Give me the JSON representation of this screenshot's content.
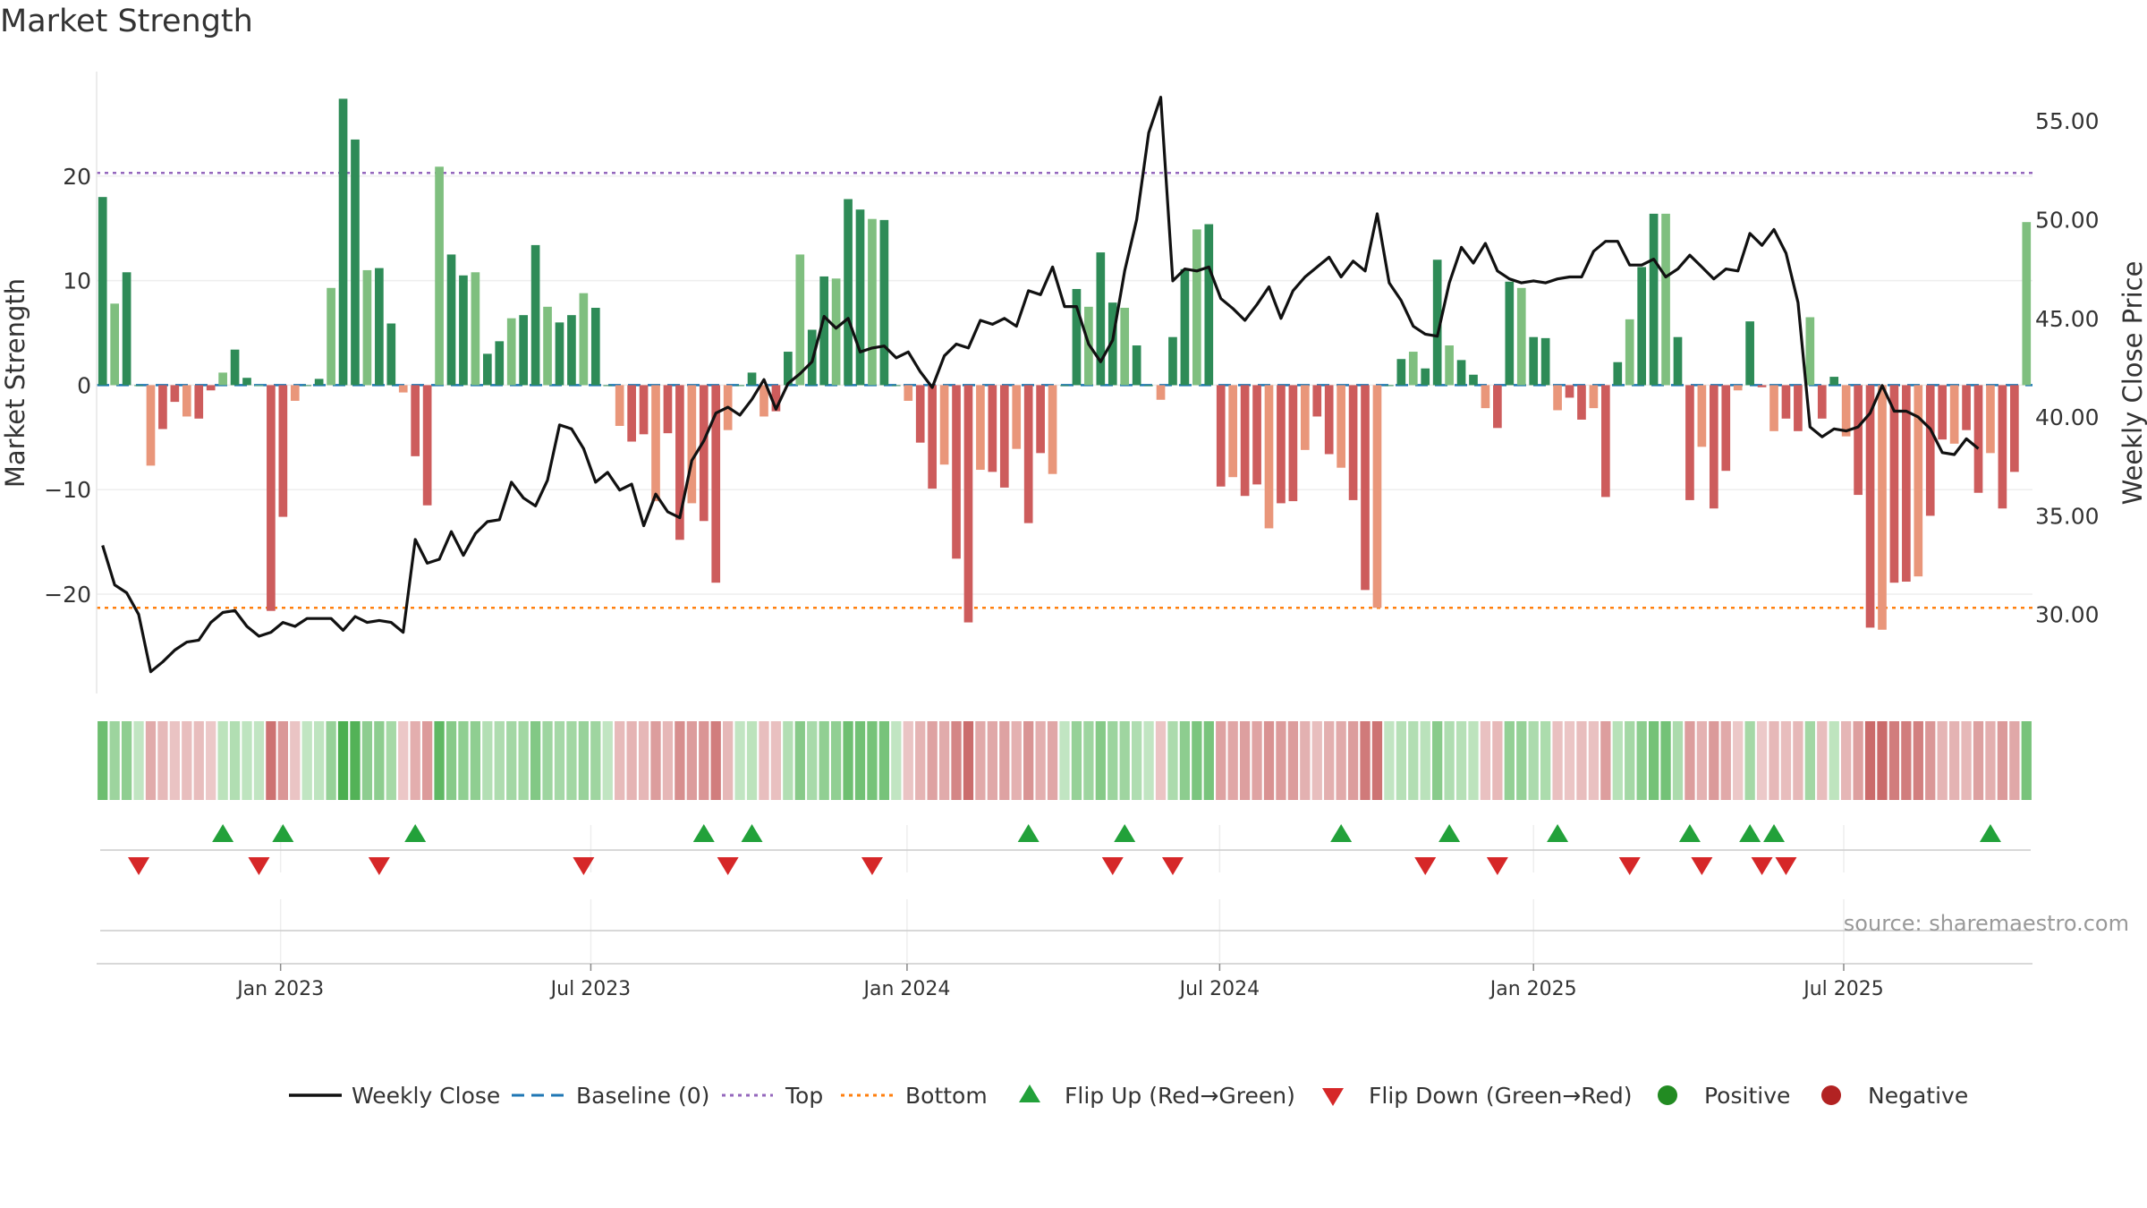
{
  "chart_data": {
    "type": "bar",
    "title": "Market Strength",
    "ylabel_left": "Market Strength",
    "ylabel_right": "Weekly Close Price",
    "source": "source: sharemaestro.com",
    "left_axis": {
      "ylim": [
        -29.5,
        30
      ],
      "ticks": [
        -20,
        -10,
        0,
        10,
        20
      ],
      "tick_labels": [
        "−20",
        "−10",
        "0",
        "10",
        "20"
      ]
    },
    "right_axis": {
      "ylim": [
        26,
        57.5
      ],
      "ticks": [
        30,
        35,
        40,
        45,
        50,
        55
      ],
      "tick_labels": [
        "30.00",
        "35.00",
        "40.00",
        "45.00",
        "50.00",
        "55.00"
      ]
    },
    "x_ticks": [
      "Jan 2023",
      "Jul 2023",
      "Jan 2024",
      "Jul 2024",
      "Jan 2025",
      "Jul 2025"
    ],
    "x_tick_weeks": [
      14.8,
      40.6,
      66.9,
      92.9,
      119.0,
      144.8
    ],
    "top_level": 20.3,
    "bottom_level": -21.3,
    "strength": [
      18,
      7.8,
      10.8,
      0,
      -7.7,
      -4.2,
      -1.6,
      -3,
      -3.2,
      -0.5,
      1.2,
      3.4,
      0.7,
      0,
      -21.6,
      -12.6,
      -1.5,
      0,
      0.6,
      9.3,
      27.4,
      23.5,
      11,
      11.2,
      5.9,
      -0.7,
      -6.8,
      -11.5,
      20.9,
      12.5,
      10.5,
      10.8,
      3,
      4.2,
      6.4,
      6.7,
      13.4,
      7.5,
      6,
      6.7,
      8.8,
      7.4,
      0,
      -3.9,
      -5.4,
      -4.7,
      -11.1,
      -4.6,
      -14.8,
      -11.3,
      -13,
      -18.9,
      -4.3,
      0,
      1.2,
      -3,
      -2.5,
      3.2,
      12.5,
      5.3,
      10.4,
      10.2,
      17.8,
      16.8,
      15.9,
      15.8,
      0,
      -1.5,
      -5.5,
      -9.9,
      -7.6,
      -16.6,
      -22.7,
      -8.1,
      -8.3,
      -9.8,
      -6.1,
      -13.2,
      -6.5,
      -8.5,
      0,
      9.2,
      7.5,
      12.7,
      7.9,
      7.4,
      3.8,
      0,
      -1.4,
      4.6,
      11.1,
      14.9,
      15.4,
      -9.7,
      -8.8,
      -10.6,
      -9.5,
      -13.7,
      -11.3,
      -11.1,
      -6.2,
      -3,
      -6.6,
      -7.9,
      -11,
      -19.6,
      -21.3,
      0,
      2.5,
      3.2,
      1.6,
      12,
      3.8,
      2.4,
      1,
      -2.2,
      -4.1,
      9.9,
      9.3,
      4.6,
      4.5,
      -2.4,
      -1.2,
      -3.3,
      -2.2,
      -10.7,
      2.2,
      6.3,
      11.3,
      16.4,
      16.4,
      4.6,
      -11,
      -5.9,
      -11.8,
      -8.2,
      -0.5,
      6.1,
      -0.2,
      -4.4,
      -3.2,
      -4.4,
      6.5,
      -3.2,
      0.8,
      -4.9,
      -10.5,
      -23.2,
      -23.4,
      -18.9,
      -18.8,
      -18.3,
      -12.5,
      -5.2,
      -5.6,
      -4.3,
      -10.3,
      -6.5,
      -11.8,
      -8.3,
      15.6
    ],
    "weekly_close": [
      33.5,
      31.5,
      31.1,
      30,
      27.1,
      27.6,
      28.2,
      28.6,
      28.7,
      29.6,
      30.1,
      30.2,
      29.4,
      28.9,
      29.1,
      29.6,
      29.4,
      29.8,
      29.8,
      29.8,
      29.2,
      29.9,
      29.6,
      29.7,
      29.6,
      29.1,
      33.8,
      32.6,
      32.8,
      34.2,
      33,
      34.1,
      34.7,
      34.8,
      36.7,
      35.9,
      35.5,
      36.8,
      39.6,
      39.4,
      38.4,
      36.7,
      37.2,
      36.3,
      36.6,
      34.5,
      36.1,
      35.2,
      34.9,
      37.8,
      38.8,
      40.2,
      40.5,
      40.1,
      40.9,
      41.9,
      40.4,
      41.7,
      42.2,
      42.8,
      45.1,
      44.5,
      45,
      43.3,
      43.5,
      43.6,
      43,
      43.3,
      42.3,
      41.5,
      43.1,
      43.7,
      43.5,
      44.9,
      44.7,
      45,
      44.6,
      46.4,
      46.2,
      47.6,
      45.6,
      45.6,
      43.7,
      42.8,
      43.9,
      47.4,
      50,
      54.4,
      56.2,
      46.9,
      47.5,
      47.4,
      47.6,
      46,
      45.5,
      44.9,
      45.7,
      46.6,
      45,
      46.4,
      47.1,
      47.6,
      48.1,
      47.1,
      47.9,
      47.4,
      50.3,
      46.8,
      45.9,
      44.6,
      44.2,
      44.1,
      46.8,
      48.6,
      47.8,
      48.8,
      47.4,
      47,
      46.8,
      46.9,
      46.8,
      47,
      47.1,
      47.1,
      48.4,
      48.9,
      48.9,
      47.7,
      47.7,
      48,
      47.1,
      47.5,
      48.2,
      47.6,
      47,
      47.5,
      47.4,
      49.3,
      48.7,
      49.5,
      48.3,
      45.8,
      39.5,
      39,
      39.4,
      39.3,
      39.5,
      40.2,
      41.6,
      40.3,
      40.3,
      40,
      39.4,
      38.2,
      38.1,
      38.9,
      38.4
    ],
    "signal_rows": {
      "flip_up_weeks": [
        10,
        15,
        26,
        50,
        54,
        77,
        85,
        103,
        112,
        121,
        132,
        137,
        139,
        157
      ],
      "flip_down_weeks": [
        3,
        13,
        23,
        40,
        52,
        64,
        84,
        89,
        110,
        116,
        127,
        133,
        138,
        140
      ]
    },
    "legend": [
      "Weekly Close",
      "Baseline (0)",
      "Top",
      "Bottom",
      "Flip Up (Red→Green)",
      "Flip Down (Green→Red)",
      "Positive",
      "Negative"
    ],
    "colors": {
      "pos_strong": "#2e8b57",
      "pos_light": "#7fbf7f",
      "neg_strong": "#cd5c5c",
      "neg_light": "#e9967a",
      "price_line": "#111111",
      "baseline": "#1f77b4",
      "top_line": "#9467bd",
      "bottom_line": "#ff7f0e",
      "flip_up": "#22a13a",
      "flip_down": "#d62728",
      "positive_dot": "#228b22",
      "negative_dot": "#b22222"
    }
  }
}
